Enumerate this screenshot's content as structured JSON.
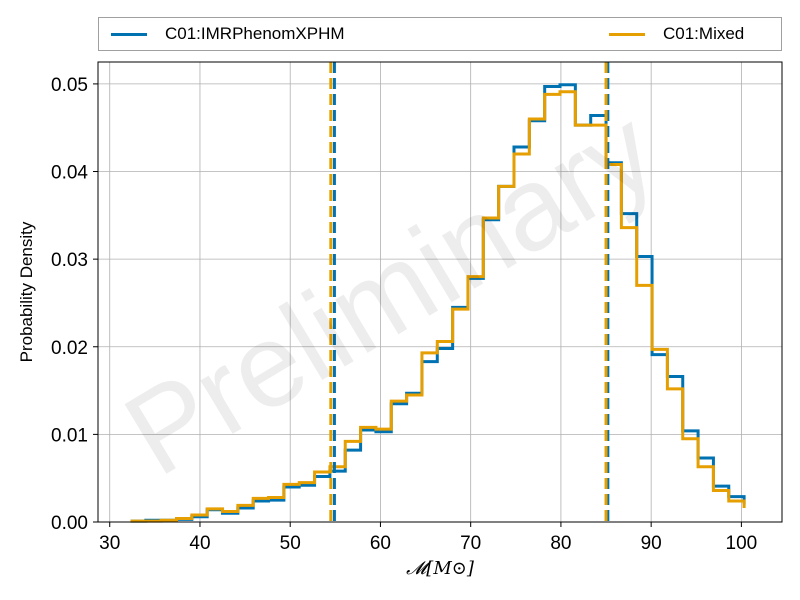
{
  "chart_data": {
    "type": "step-histogram",
    "xlabel": "𝓜[M⊙]",
    "ylabel": "Probability Density",
    "xlim": [
      28.7,
      104.5
    ],
    "ylim": [
      0,
      0.0525
    ],
    "xticks": [
      30,
      40,
      50,
      60,
      70,
      80,
      90,
      100
    ],
    "xtick_labels": [
      "30",
      "40",
      "50",
      "60",
      "70",
      "80",
      "90",
      "100"
    ],
    "yticks": [
      0.0,
      0.01,
      0.02,
      0.03,
      0.04,
      0.05
    ],
    "ytick_labels": [
      "0.00",
      "0.01",
      "0.02",
      "0.03",
      "0.04",
      "0.05"
    ],
    "grid": true,
    "legend_position": "top",
    "watermark": "Preliminary",
    "bin_edges": [
      32.3,
      34.0,
      35.7,
      37.4,
      39.1,
      40.8,
      42.5,
      44.2,
      45.9,
      47.6,
      49.3,
      51.0,
      52.7,
      54.4,
      56.1,
      57.8,
      59.5,
      61.2,
      62.9,
      64.6,
      66.3,
      68.0,
      69.7,
      71.4,
      73.1,
      74.8,
      76.5,
      78.2,
      79.9,
      81.6,
      83.3,
      85.0,
      86.7,
      88.4,
      90.1,
      91.8,
      93.5,
      95.2,
      96.9,
      98.6,
      100.3
    ],
    "series": [
      {
        "name": "C01:IMRPhenomXPHM",
        "color": "#0072b2",
        "values": [
          0.0001,
          0.0002,
          0.0002,
          0.0003,
          0.0006,
          0.0014,
          0.001,
          0.0016,
          0.0024,
          0.0025,
          0.004,
          0.0042,
          0.0052,
          0.0058,
          0.0082,
          0.0105,
          0.0103,
          0.0135,
          0.0147,
          0.0183,
          0.0198,
          0.0245,
          0.0278,
          0.0345,
          0.0383,
          0.0428,
          0.0458,
          0.0497,
          0.0499,
          0.0453,
          0.0464,
          0.041,
          0.0352,
          0.0303,
          0.0191,
          0.0166,
          0.0104,
          0.0073,
          0.0041,
          0.0029,
          0.002
        ]
      },
      {
        "name": "C01:Mixed",
        "color": "#e69f00",
        "values": [
          0.0001,
          0.0001,
          0.0002,
          0.0004,
          0.0008,
          0.0015,
          0.0012,
          0.0019,
          0.0027,
          0.0028,
          0.0043,
          0.0045,
          0.0057,
          0.0063,
          0.0092,
          0.0108,
          0.0106,
          0.0138,
          0.0145,
          0.0193,
          0.0206,
          0.0243,
          0.028,
          0.0347,
          0.0383,
          0.042,
          0.046,
          0.0488,
          0.0491,
          0.0453,
          0.0453,
          0.0408,
          0.0336,
          0.027,
          0.0197,
          0.0152,
          0.0095,
          0.0063,
          0.0036,
          0.0024,
          0.0016
        ]
      }
    ],
    "intervals": [
      {
        "series": "C01:IMRPhenomXPHM",
        "lines": [
          54.9,
          85.2
        ]
      },
      {
        "series": "C01:Mixed",
        "lines": [
          54.5,
          85.0
        ]
      }
    ]
  }
}
